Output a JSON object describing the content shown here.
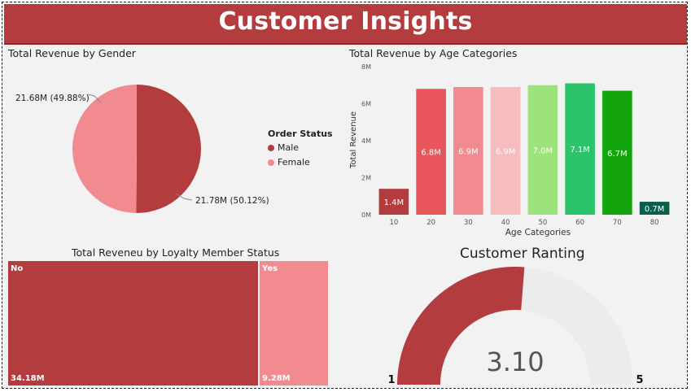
{
  "header": {
    "title": "Customer Insights"
  },
  "gender_chart": {
    "title": "Total Revenue by Gender",
    "legend_title": "Order Status",
    "colors": {
      "male": "#b33c3f",
      "female": "#f28b8f"
    },
    "chart_data": {
      "type": "pie",
      "slices": [
        {
          "name": "Male",
          "value": 21.78,
          "label": "21.78M (50.12%)",
          "percent": 50.12
        },
        {
          "name": "Female",
          "value": 21.68,
          "label": "21.68M (49.88%)",
          "percent": 49.88
        }
      ]
    }
  },
  "age_chart": {
    "title": "Total Revenue by Age Categories",
    "chart_data": {
      "type": "bar",
      "xlabel": "Age Categories",
      "ylabel": "Total Revenue",
      "ylim": [
        0,
        8
      ],
      "yticks": [
        "0M",
        "2M",
        "4M",
        "6M",
        "8M"
      ],
      "categories": [
        "10",
        "20",
        "30",
        "40",
        "50",
        "60",
        "70",
        "80"
      ],
      "values": [
        1.4,
        6.8,
        6.9,
        6.9,
        7.0,
        7.1,
        6.7,
        0.7
      ],
      "data_labels": [
        "1.4M",
        "6.8M",
        "6.9M",
        "6.9M",
        "7.0M",
        "7.1M",
        "6.7M",
        "0.7M"
      ],
      "colors": [
        "#b33c3f",
        "#e8555a",
        "#f28b8f",
        "#f7bcbd",
        "#9be37a",
        "#2cc46a",
        "#14a50e",
        "#0b5e4a"
      ]
    }
  },
  "loyalty_chart": {
    "title": "Total Reveneu by Loyalty Member Status",
    "chart_data": {
      "type": "treemap",
      "items": [
        {
          "name": "No",
          "value": 34.18,
          "label": "34.18M",
          "color": "#b33c3f"
        },
        {
          "name": "Yes",
          "value": 9.28,
          "label": "9.28M",
          "color": "#f28b8f"
        }
      ]
    }
  },
  "rating_gauge": {
    "title": "Customer Ranting",
    "value_label": "3.10",
    "min_label": "1",
    "max_label": "5",
    "chart_data": {
      "type": "gauge",
      "value": 3.1,
      "min": 1,
      "max": 5,
      "fill_color": "#b33c3f"
    }
  }
}
